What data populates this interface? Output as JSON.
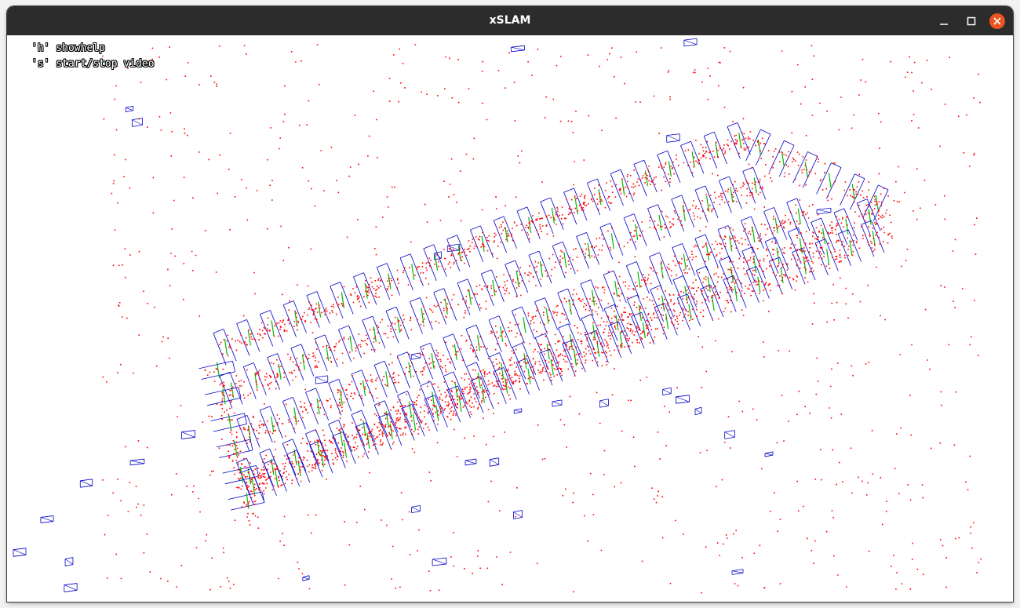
{
  "window": {
    "title": "xSLAM",
    "buttons": {
      "minimize": "minimize",
      "maximize": "maximize",
      "close": "close"
    }
  },
  "overlay": {
    "lines": [
      "'h' showhelp",
      "'s' start/stop video"
    ]
  },
  "colors": {
    "titlebar": "#2c2c2c",
    "close_button": "#e95420",
    "map_points": "#ff0000",
    "keyframes": "#0000cc",
    "trajectory": "#00bb00"
  }
}
